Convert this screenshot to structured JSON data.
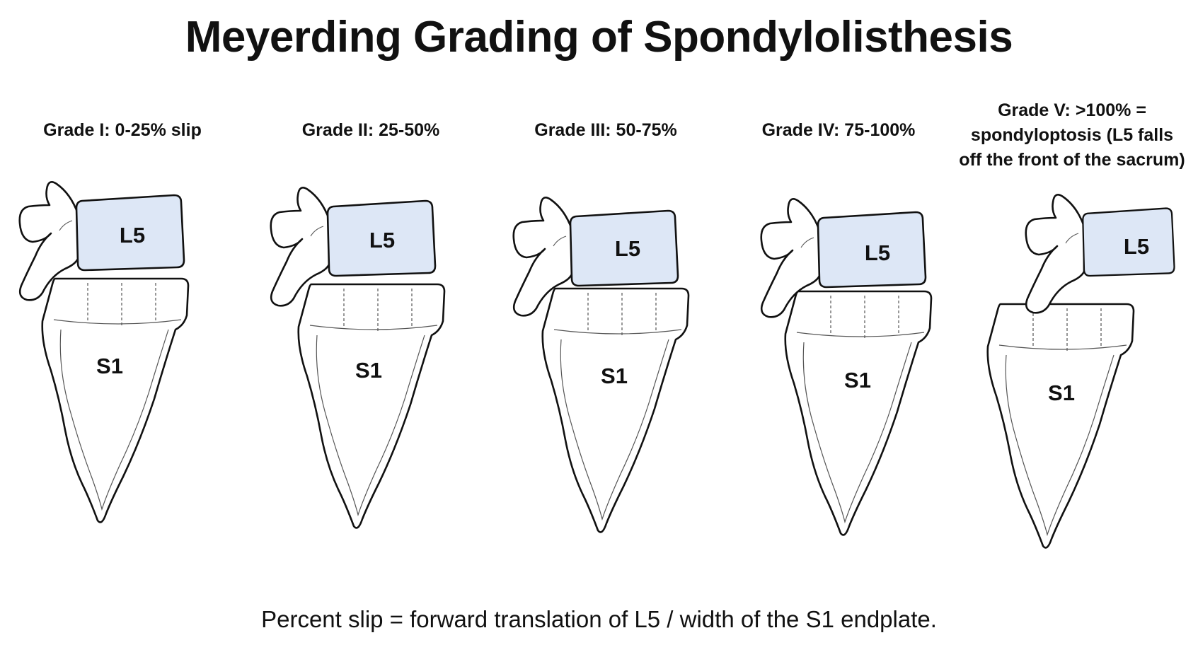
{
  "title": "Meyerding Grading of Spondylolisthesis",
  "caption": "Percent slip = forward translation of L5 / width of the S1 endplate.",
  "colors": {
    "l5_fill": "#dde7f6",
    "outline": "#111111"
  },
  "grades": [
    {
      "label_lines": [
        "Grade I: 0-25% slip"
      ],
      "vertebra_label": "L5",
      "sacrum_label": "S1",
      "slip_percent_range": [
        0,
        25
      ]
    },
    {
      "label_lines": [
        "Grade II: 25-50%"
      ],
      "vertebra_label": "L5",
      "sacrum_label": "S1",
      "slip_percent_range": [
        25,
        50
      ]
    },
    {
      "label_lines": [
        "Grade III: 50-75%"
      ],
      "vertebra_label": "L5",
      "sacrum_label": "S1",
      "slip_percent_range": [
        50,
        75
      ]
    },
    {
      "label_lines": [
        "Grade IV: 75-100%"
      ],
      "vertebra_label": "L5",
      "sacrum_label": "S1",
      "slip_percent_range": [
        75,
        100
      ]
    },
    {
      "label_lines": [
        "Grade V: >100% =",
        "spondyloptosis (L5 falls",
        "off the front of the sacrum)"
      ],
      "vertebra_label": "L5",
      "sacrum_label": "S1",
      "slip_percent_range": [
        100,
        100
      ]
    }
  ]
}
